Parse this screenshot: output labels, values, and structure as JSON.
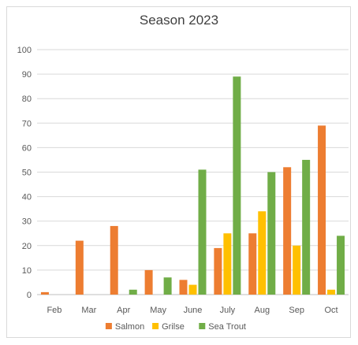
{
  "chart_data": {
    "type": "bar",
    "title": "Season 2023",
    "categories": [
      "Feb",
      "Mar",
      "Apr",
      "May",
      "June",
      "July",
      "Aug",
      "Sep",
      "Oct"
    ],
    "series": [
      {
        "name": "Salmon",
        "color": "#ED7D31",
        "values": [
          1,
          22,
          28,
          10,
          6,
          19,
          25,
          52,
          69
        ]
      },
      {
        "name": "Grilse",
        "color": "#FFC000",
        "values": [
          0,
          0,
          0,
          0,
          4,
          25,
          34,
          20,
          2
        ]
      },
      {
        "name": "Sea Trout",
        "color": "#70AD47",
        "values": [
          0,
          0,
          2,
          7,
          51,
          89,
          50,
          55,
          24
        ]
      }
    ],
    "ylim": [
      0,
      100
    ],
    "yticks": [
      0,
      10,
      20,
      30,
      40,
      50,
      60,
      70,
      80,
      90,
      100
    ],
    "grid": true,
    "legend": "bottom"
  }
}
